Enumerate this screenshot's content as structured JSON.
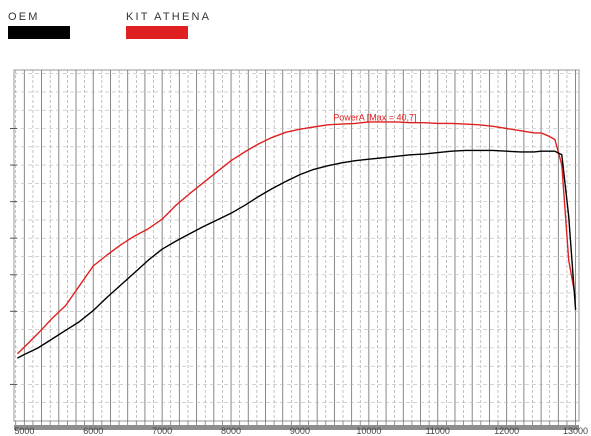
{
  "legend": [
    {
      "label": "OEM",
      "color": "#000000"
    },
    {
      "label": "KIT ATHENA",
      "color": "#e02020"
    }
  ],
  "chart_data": {
    "type": "line",
    "xlim": [
      4850,
      13050
    ],
    "ylim": [
      0,
      48
    ],
    "x_ticks": [
      5000,
      6000,
      7000,
      8000,
      9000,
      10000,
      11000,
      12000,
      13000
    ],
    "y_ticks": [
      5,
      15,
      20,
      25,
      30,
      35,
      40
    ],
    "y_tick_labels": [
      "",
      "",
      "",
      "",
      "",
      "",
      ""
    ],
    "grid": true,
    "annotation": {
      "text": "PowerA [Max = 40,7]",
      "x": 10000,
      "y": 40.7,
      "color": "#e02020"
    },
    "series": [
      {
        "name": "KIT ATHENA",
        "color": "#e02020",
        "x": [
          4900,
          5000,
          5200,
          5400,
          5600,
          5800,
          6000,
          6200,
          6400,
          6600,
          6800,
          7000,
          7200,
          7400,
          7600,
          7800,
          8000,
          8200,
          8400,
          8600,
          8800,
          9000,
          9200,
          9400,
          9600,
          9800,
          10000,
          10200,
          10400,
          10600,
          10800,
          11000,
          11200,
          11400,
          11600,
          11800,
          12000,
          12200,
          12400,
          12500,
          12600,
          12700,
          12800,
          12900,
          13000
        ],
        "values": [
          9.2,
          10.1,
          12.0,
          14.0,
          15.8,
          18.5,
          21.2,
          22.7,
          24.1,
          25.3,
          26.3,
          27.6,
          29.5,
          31.1,
          32.6,
          34.1,
          35.6,
          36.8,
          37.9,
          38.8,
          39.5,
          39.9,
          40.2,
          40.5,
          40.6,
          40.7,
          40.9,
          40.9,
          40.9,
          40.8,
          40.8,
          40.7,
          40.7,
          40.6,
          40.5,
          40.3,
          40.0,
          39.7,
          39.4,
          39.4,
          39.0,
          38.5,
          35.0,
          22.0,
          16.8
        ]
      },
      {
        "name": "OEM",
        "color": "#000000",
        "x": [
          4900,
          5000,
          5200,
          5400,
          5600,
          5800,
          6000,
          6200,
          6400,
          6600,
          6800,
          7000,
          7200,
          7400,
          7600,
          7800,
          8000,
          8200,
          8400,
          8600,
          8800,
          9000,
          9200,
          9400,
          9600,
          9800,
          10000,
          10200,
          10400,
          10600,
          10800,
          11000,
          11200,
          11400,
          11600,
          11800,
          12000,
          12200,
          12400,
          12500,
          12600,
          12700,
          12800,
          12900,
          13000
        ],
        "values": [
          8.6,
          9.1,
          10.0,
          11.2,
          12.4,
          13.6,
          15.1,
          16.9,
          18.6,
          20.3,
          22.0,
          23.5,
          24.6,
          25.6,
          26.6,
          27.5,
          28.4,
          29.5,
          30.7,
          31.8,
          32.8,
          33.7,
          34.4,
          34.9,
          35.3,
          35.6,
          35.8,
          36.0,
          36.2,
          36.4,
          36.5,
          36.7,
          36.9,
          37.0,
          37.0,
          37.0,
          36.9,
          36.8,
          36.8,
          36.9,
          36.9,
          36.9,
          36.4,
          28.0,
          15.2
        ]
      }
    ]
  }
}
